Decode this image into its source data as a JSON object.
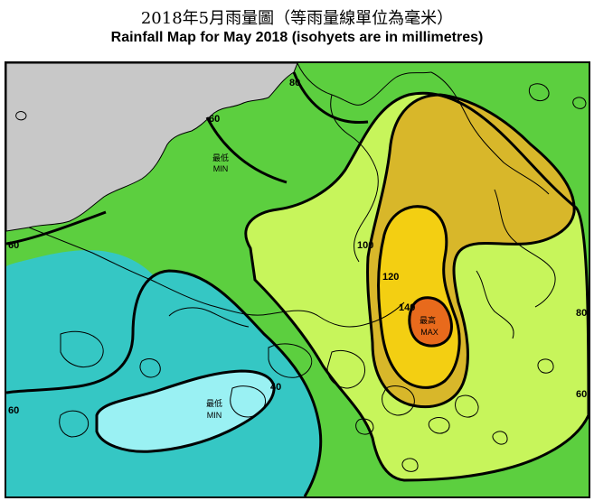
{
  "title_zh": "2018年5月雨量圖（等雨量線單位為毫米）",
  "title_en": "Rainfall Map for May 2018 (isohyets are in millimetres)",
  "colors": {
    "sea_land_under_60": "#35c7c4",
    "band_40_60_inner": "#35c7c4",
    "band_under_40": "#9af1f3",
    "band_60_80": "#5ccf3f",
    "band_80_100": "#c7f55b",
    "band_100_120": "#d8b72a",
    "band_120_140": "#f3cf12",
    "band_over_140": "#e86a1c",
    "outside_area": "#c8c8c8",
    "coastline": "#000000"
  },
  "isohyet_labels": {
    "l80_top": "80",
    "l60_top": "60",
    "l60_left": "60",
    "l60_bottom_left": "60",
    "l40": "40",
    "l100": "100",
    "l120": "120",
    "l140": "140",
    "l80_right": "80",
    "l60_right": "60"
  },
  "annotations": {
    "min_top_zh": "最低",
    "min_top_en": "MIN",
    "min_bottom_zh": "最低",
    "min_bottom_en": "MIN",
    "max_zh": "最高",
    "max_en": "MAX"
  }
}
